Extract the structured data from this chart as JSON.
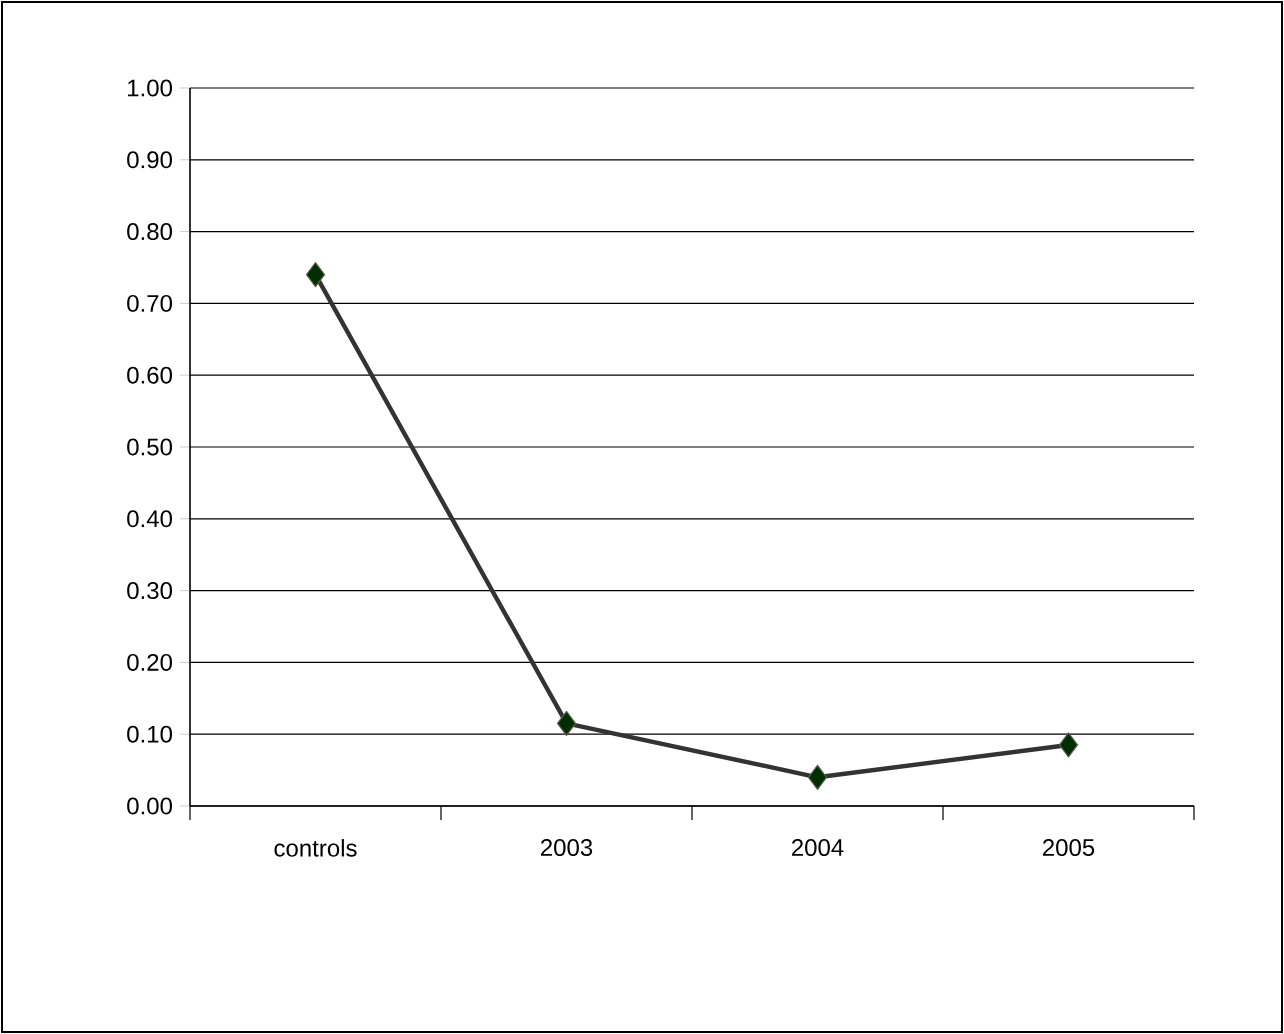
{
  "chart_data": {
    "type": "line",
    "categories": [
      "controls",
      "2003",
      "2004",
      "2005"
    ],
    "series": [
      {
        "color": "#333333",
        "values": [
          0.74,
          0.115,
          0.04,
          0.085
        ]
      }
    ],
    "ylim": [
      0,
      1
    ],
    "yticks": [
      {
        "value": 0,
        "label": "0.00"
      },
      {
        "value": 0.1,
        "label": "0.10"
      },
      {
        "value": 0.2,
        "label": "0.20"
      },
      {
        "value": 0.3,
        "label": "0.30"
      },
      {
        "value": 0.4,
        "label": "0.40"
      },
      {
        "value": 0.5,
        "label": "0.50"
      },
      {
        "value": 0.6,
        "label": "0.60"
      },
      {
        "value": 0.7,
        "label": "0.70"
      },
      {
        "value": 0.8,
        "label": "0.80"
      },
      {
        "value": 0.9,
        "label": "0.90"
      },
      {
        "value": 1,
        "label": "1.00"
      }
    ],
    "grid": "y",
    "marker": "diamond",
    "line_style": "solid"
  }
}
